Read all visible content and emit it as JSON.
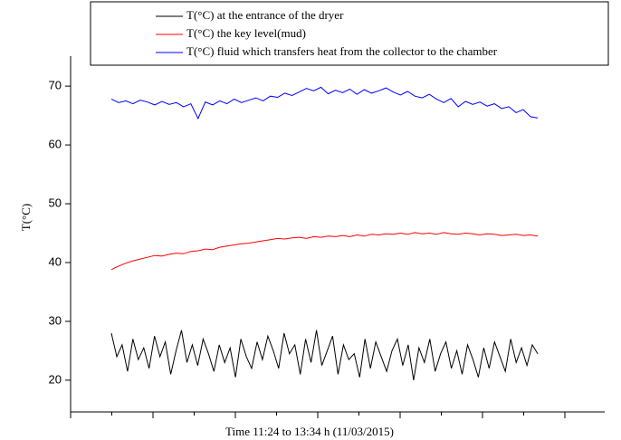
{
  "chart_data": {
    "type": "line",
    "xlabel": "Time 11:24 to 13:34 h (11/03/2015)",
    "ylabel": "T(°C)",
    "ylim": [
      14.6,
      75.1
    ],
    "yticks": [
      20,
      30,
      40,
      50,
      60,
      70
    ],
    "series": [
      {
        "name": "T(°C) at the entrance of the dryer",
        "color": "#000000",
        "values": [
          28,
          24,
          26,
          21.5,
          27,
          23.5,
          25.5,
          22,
          27.5,
          24,
          26.5,
          21,
          25,
          28.5,
          23,
          26,
          22.5,
          27,
          24.5,
          21.5,
          26,
          23,
          25.5,
          20.5,
          27,
          24,
          22,
          26.5,
          23.5,
          27.5,
          25,
          22,
          28,
          24.5,
          26,
          21,
          27,
          23,
          28.5,
          22.5,
          25,
          27.5,
          21,
          26,
          23.5,
          24.5,
          20.5,
          27,
          22,
          26.5,
          24,
          21.5,
          25,
          27,
          22.5,
          26,
          20,
          25.5,
          23,
          27,
          21.5,
          24.5,
          26.5,
          22,
          25,
          21,
          26,
          23.5,
          20.5,
          25.5,
          22,
          26.5,
          24,
          21.5,
          27,
          23,
          25.5,
          22.5,
          26,
          24.5
        ]
      },
      {
        "name": "T(°C) the key level(mud)",
        "color": "#ff0000",
        "values": [
          38.8,
          39.4,
          39.9,
          40.3,
          40.6,
          40.9,
          41.2,
          41.1,
          41.4,
          41.6,
          41.5,
          41.9,
          42.0,
          42.3,
          42.2,
          42.6,
          42.8,
          43.0,
          43.2,
          43.3,
          43.5,
          43.7,
          43.9,
          44.1,
          44.0,
          44.2,
          44.3,
          44.1,
          44.4,
          44.3,
          44.5,
          44.4,
          44.6,
          44.4,
          44.7,
          44.5,
          44.8,
          44.7,
          44.9,
          44.8,
          45.0,
          44.8,
          45.1,
          44.9,
          45.0,
          44.8,
          45.1,
          44.9,
          44.8,
          45.0,
          44.9,
          44.7,
          44.9,
          44.8,
          44.6,
          44.7,
          44.8,
          44.6,
          44.7,
          44.5
        ]
      },
      {
        "name": "T(°C) fluid which transfers heat from the collector to the chamber",
        "color": "#0000ff",
        "values": [
          67.8,
          67.2,
          67.5,
          67.0,
          67.6,
          67.3,
          66.8,
          67.4,
          66.9,
          67.2,
          66.5,
          67.0,
          64.5,
          67.3,
          66.8,
          67.5,
          67.0,
          67.8,
          67.2,
          67.6,
          68.0,
          67.5,
          68.3,
          68.1,
          68.8,
          68.4,
          69.0,
          69.6,
          69.2,
          69.8,
          68.7,
          69.3,
          68.9,
          69.5,
          68.6,
          69.4,
          68.8,
          69.2,
          69.7,
          69.0,
          68.5,
          69.1,
          68.3,
          68.0,
          68.6,
          67.8,
          67.2,
          67.9,
          66.5,
          67.4,
          66.9,
          67.3,
          66.6,
          67.0,
          66.2,
          66.5,
          65.5,
          66.0,
          64.8,
          64.6
        ]
      }
    ]
  }
}
